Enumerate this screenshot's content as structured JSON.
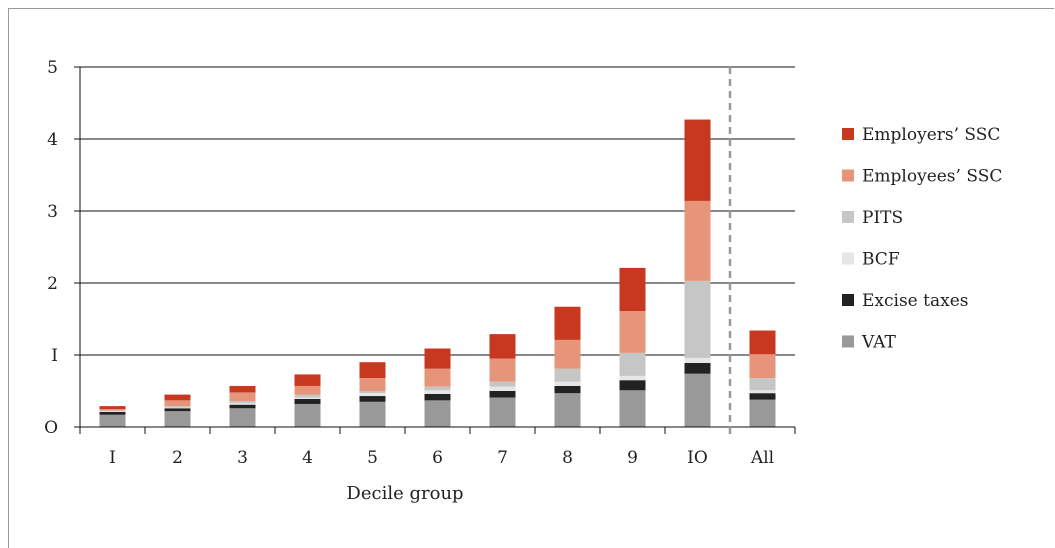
{
  "chart_data": {
    "type": "bar",
    "stacked": true,
    "categories": [
      "1",
      "2",
      "3",
      "4",
      "5",
      "6",
      "7",
      "8",
      "9",
      "10",
      "All"
    ],
    "xlabel": "Decile group",
    "ylabel": "",
    "ylim": [
      0,
      5
    ],
    "yticks": [
      0,
      1,
      2,
      3,
      4,
      5
    ],
    "grid": true,
    "legend_position": "right",
    "separator_before": "All",
    "series": [
      {
        "name": "VAT",
        "color": "#999999",
        "values": [
          0.17,
          0.22,
          0.26,
          0.32,
          0.35,
          0.37,
          0.41,
          0.47,
          0.51,
          0.74,
          0.38
        ]
      },
      {
        "name": "Excise taxes",
        "color": "#222222",
        "values": [
          0.04,
          0.04,
          0.05,
          0.07,
          0.08,
          0.09,
          0.09,
          0.1,
          0.14,
          0.15,
          0.09
        ]
      },
      {
        "name": "BCF",
        "color": "#e6e6e6",
        "values": [
          0.01,
          0.01,
          0.02,
          0.02,
          0.04,
          0.05,
          0.06,
          0.06,
          0.06,
          0.07,
          0.04
        ]
      },
      {
        "name": "PITS",
        "color": "#c6c6c6",
        "values": [
          0.01,
          0.02,
          0.03,
          0.04,
          0.03,
          0.05,
          0.07,
          0.18,
          0.32,
          1.07,
          0.17
        ]
      },
      {
        "name": "Employees' SSC",
        "color": "#e6957a",
        "values": [
          0.02,
          0.08,
          0.12,
          0.12,
          0.18,
          0.25,
          0.32,
          0.4,
          0.58,
          1.11,
          0.33
        ]
      },
      {
        "name": "Employers' SSC",
        "color": "#c8371f",
        "values": [
          0.04,
          0.08,
          0.09,
          0.16,
          0.22,
          0.28,
          0.34,
          0.46,
          0.6,
          1.13,
          0.33
        ]
      }
    ],
    "legend_order": [
      "Employers' SSC",
      "Employees' SSC",
      "PITS",
      "BCF",
      "Excise taxes",
      "VAT"
    ],
    "legend_labels": {
      "Employers' SSC": "Employers’ SSC",
      "Employees' SSC": "Employees’ SSC",
      "PITS": "PITS",
      "BCF": "BCF",
      "Excise taxes": "Excise taxes",
      "VAT": "VAT"
    },
    "tick_labels_x": [
      "I",
      "2",
      "3",
      "4",
      "5",
      "6",
      "7",
      "8",
      "9",
      "IO",
      "All"
    ],
    "tick_labels_y": [
      "O",
      "I",
      "2",
      "3",
      "4",
      "5"
    ]
  }
}
